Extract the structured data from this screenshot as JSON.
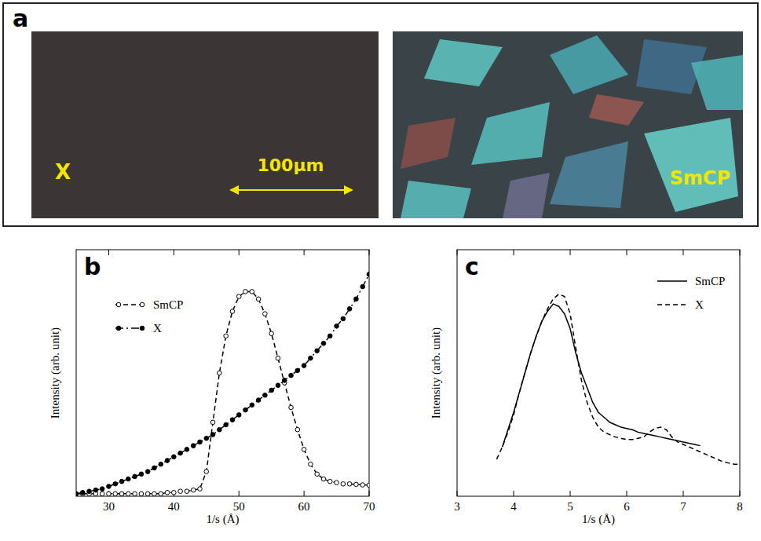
{
  "micrographs": {
    "panel": "a",
    "images": [
      {
        "label": "X"
      },
      {
        "label": "SmCP"
      }
    ],
    "scale_bar": "100μm"
  },
  "chart_data": [
    {
      "type": "line",
      "title": "b",
      "x_label": "1/s (Å)",
      "y_label": "Intensity (arb. unit)",
      "x": [
        25,
        26,
        27,
        28,
        29,
        30,
        31,
        32,
        33,
        34,
        35,
        36,
        37,
        38,
        39,
        40,
        41,
        42,
        43,
        44,
        45,
        46,
        47,
        48,
        49,
        50,
        51,
        52,
        53,
        54,
        55,
        56,
        57,
        58,
        59,
        60,
        61,
        62,
        63,
        64,
        65,
        66,
        67,
        68,
        69,
        70
      ],
      "series": [
        {
          "name": "SmCP",
          "color": "#000000",
          "marker": "circle-open",
          "line_style": "dashed",
          "values": [
            0.01,
            0.01,
            0.01,
            0.01,
            0.01,
            0.01,
            0.01,
            0.01,
            0.01,
            0.01,
            0.01,
            0.01,
            0.01,
            0.01,
            0.015,
            0.015,
            0.02,
            0.02,
            0.025,
            0.03,
            0.1,
            0.3,
            0.5,
            0.65,
            0.75,
            0.81,
            0.83,
            0.83,
            0.8,
            0.74,
            0.66,
            0.56,
            0.46,
            0.36,
            0.27,
            0.19,
            0.13,
            0.09,
            0.07,
            0.06,
            0.055,
            0.05,
            0.05,
            0.048,
            0.046,
            0.045
          ]
        },
        {
          "name": "X",
          "color": "#000000",
          "marker": "circle",
          "line_style": "dash-dot",
          "values": [
            0.01,
            0.015,
            0.02,
            0.025,
            0.03,
            0.04,
            0.05,
            0.06,
            0.07,
            0.08,
            0.09,
            0.1,
            0.115,
            0.13,
            0.145,
            0.16,
            0.175,
            0.19,
            0.205,
            0.22,
            0.235,
            0.25,
            0.27,
            0.29,
            0.31,
            0.33,
            0.35,
            0.37,
            0.39,
            0.41,
            0.43,
            0.45,
            0.47,
            0.49,
            0.51,
            0.53,
            0.56,
            0.59,
            0.62,
            0.65,
            0.69,
            0.72,
            0.76,
            0.8,
            0.85,
            0.9
          ]
        }
      ],
      "xlim": [
        25,
        70
      ],
      "xticks": [
        30,
        40,
        50,
        60,
        70
      ],
      "ylim": [
        0,
        1
      ],
      "grid": false,
      "legend": "top-left",
      "tick_labels": "x"
    },
    {
      "type": "line",
      "title": "c",
      "x_label": "1/s (Å)",
      "y_label": "Intensity (arb. unit)",
      "x": [
        3.7,
        3.8,
        3.9,
        4.0,
        4.1,
        4.2,
        4.3,
        4.4,
        4.5,
        4.6,
        4.7,
        4.8,
        4.9,
        5.0,
        5.1,
        5.2,
        5.3,
        5.4,
        5.5,
        5.6,
        5.7,
        5.8,
        5.9,
        6.0,
        6.1,
        6.2,
        6.3,
        6.4,
        6.5,
        6.6,
        6.7,
        6.8,
        6.9,
        7.0,
        7.1,
        7.2,
        7.3,
        7.4,
        7.5,
        7.6,
        7.7,
        7.8,
        7.9,
        8.0
      ],
      "series": [
        {
          "name": "SmCP",
          "color": "#000000",
          "line_style": "solid",
          "values": [
            null,
            0.2,
            0.27,
            0.34,
            0.42,
            0.5,
            0.58,
            0.65,
            0.71,
            0.75,
            0.78,
            0.77,
            0.74,
            0.68,
            0.58,
            0.5,
            0.44,
            0.38,
            0.34,
            0.32,
            0.3,
            0.29,
            0.28,
            0.275,
            0.27,
            0.26,
            0.255,
            0.25,
            0.245,
            0.24,
            0.235,
            0.23,
            0.225,
            0.22,
            0.215,
            0.21,
            0.205,
            null,
            null,
            null,
            null,
            null,
            null,
            null
          ]
        },
        {
          "name": "X",
          "color": "#000000",
          "line_style": "dashed",
          "values": [
            0.15,
            0.2,
            0.26,
            0.33,
            0.42,
            0.5,
            0.58,
            0.65,
            0.71,
            0.76,
            0.8,
            0.82,
            0.81,
            0.74,
            0.6,
            0.47,
            0.38,
            0.32,
            0.28,
            0.26,
            0.25,
            0.24,
            0.235,
            0.23,
            0.23,
            0.235,
            0.24,
            0.26,
            0.275,
            0.28,
            0.27,
            0.24,
            0.22,
            0.21,
            0.2,
            0.19,
            0.18,
            0.17,
            0.16,
            0.15,
            0.14,
            0.135,
            0.13,
            0.13
          ]
        }
      ],
      "xlim": [
        3,
        8
      ],
      "xticks": [
        3,
        4,
        5,
        6,
        7,
        8
      ],
      "ylim": [
        0,
        1
      ],
      "grid": false,
      "legend": "top-right",
      "tick_labels": "x"
    }
  ]
}
